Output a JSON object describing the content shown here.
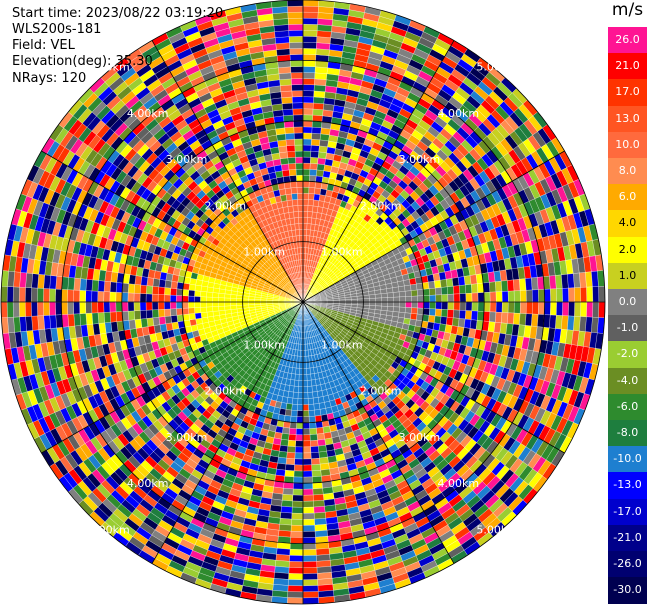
{
  "header": {
    "start_time": "Start time: 2023/08/22 03:19:20",
    "instrument": "WLS200s-181",
    "field": "Field: VEL",
    "elevation": "Elevation(deg): 35.30",
    "nrays": "NRays: 120"
  },
  "colorbar": {
    "unit": "m/s",
    "levels": [
      {
        "label": "26.0",
        "color": "#ff1493"
      },
      {
        "label": "21.0",
        "color": "#ff0000"
      },
      {
        "label": "17.0",
        "color": "#ff3300"
      },
      {
        "label": "13.0",
        "color": "#ff5522"
      },
      {
        "label": "10.0",
        "color": "#ff6a3d"
      },
      {
        "label": "8.0",
        "color": "#ff8c50"
      },
      {
        "label": "6.0",
        "color": "#ffaa00"
      },
      {
        "label": "4.0",
        "color": "#ffd700"
      },
      {
        "label": "2.0",
        "color": "#ffff00"
      },
      {
        "label": "1.0",
        "color": "#c8d020"
      },
      {
        "label": "0.0",
        "color": "#808080"
      },
      {
        "label": "-1.0",
        "color": "#606060"
      },
      {
        "label": "-2.0",
        "color": "#9acd32"
      },
      {
        "label": "-4.0",
        "color": "#6b8e23"
      },
      {
        "label": "-6.0",
        "color": "#2e8b2e"
      },
      {
        "label": "-8.0",
        "color": "#1e7e3e"
      },
      {
        "label": "-10.0",
        "color": "#1e7fd0"
      },
      {
        "label": "-13.0",
        "color": "#0000ff"
      },
      {
        "label": "-17.0",
        "color": "#0000cd"
      },
      {
        "label": "-21.0",
        "color": "#00008b"
      },
      {
        "label": "-26.0",
        "color": "#000070"
      },
      {
        "label": "-30.0",
        "color": "#000050"
      }
    ]
  },
  "chart_data": {
    "type": "heatmap",
    "projection": "polar PPI",
    "field": "VEL",
    "elevation_deg": 35.3,
    "n_rays": 120,
    "unit": "m/s",
    "value_range": [
      -30.0,
      26.0
    ],
    "range_rings_km": [
      1.0,
      2.0,
      3.0,
      4.0,
      5.0
    ],
    "max_range_km": 5.0,
    "ring_label_text": "1.00km|2.00km|3.00km|4.00km|5.00km",
    "valid_data_max_range_km": 2.0,
    "quadrant_pattern": [
      {
        "sector": "north",
        "value": 10.0
      },
      {
        "sector": "north-east",
        "value": 2.0
      },
      {
        "sector": "east",
        "value": 0.0
      },
      {
        "sector": "south-east",
        "value": -4.0
      },
      {
        "sector": "south",
        "value": -10.0
      },
      {
        "sector": "south-west",
        "value": -6.0
      },
      {
        "sector": "west",
        "value": 2.0
      },
      {
        "sector": "north-west",
        "value": 6.0
      }
    ]
  }
}
